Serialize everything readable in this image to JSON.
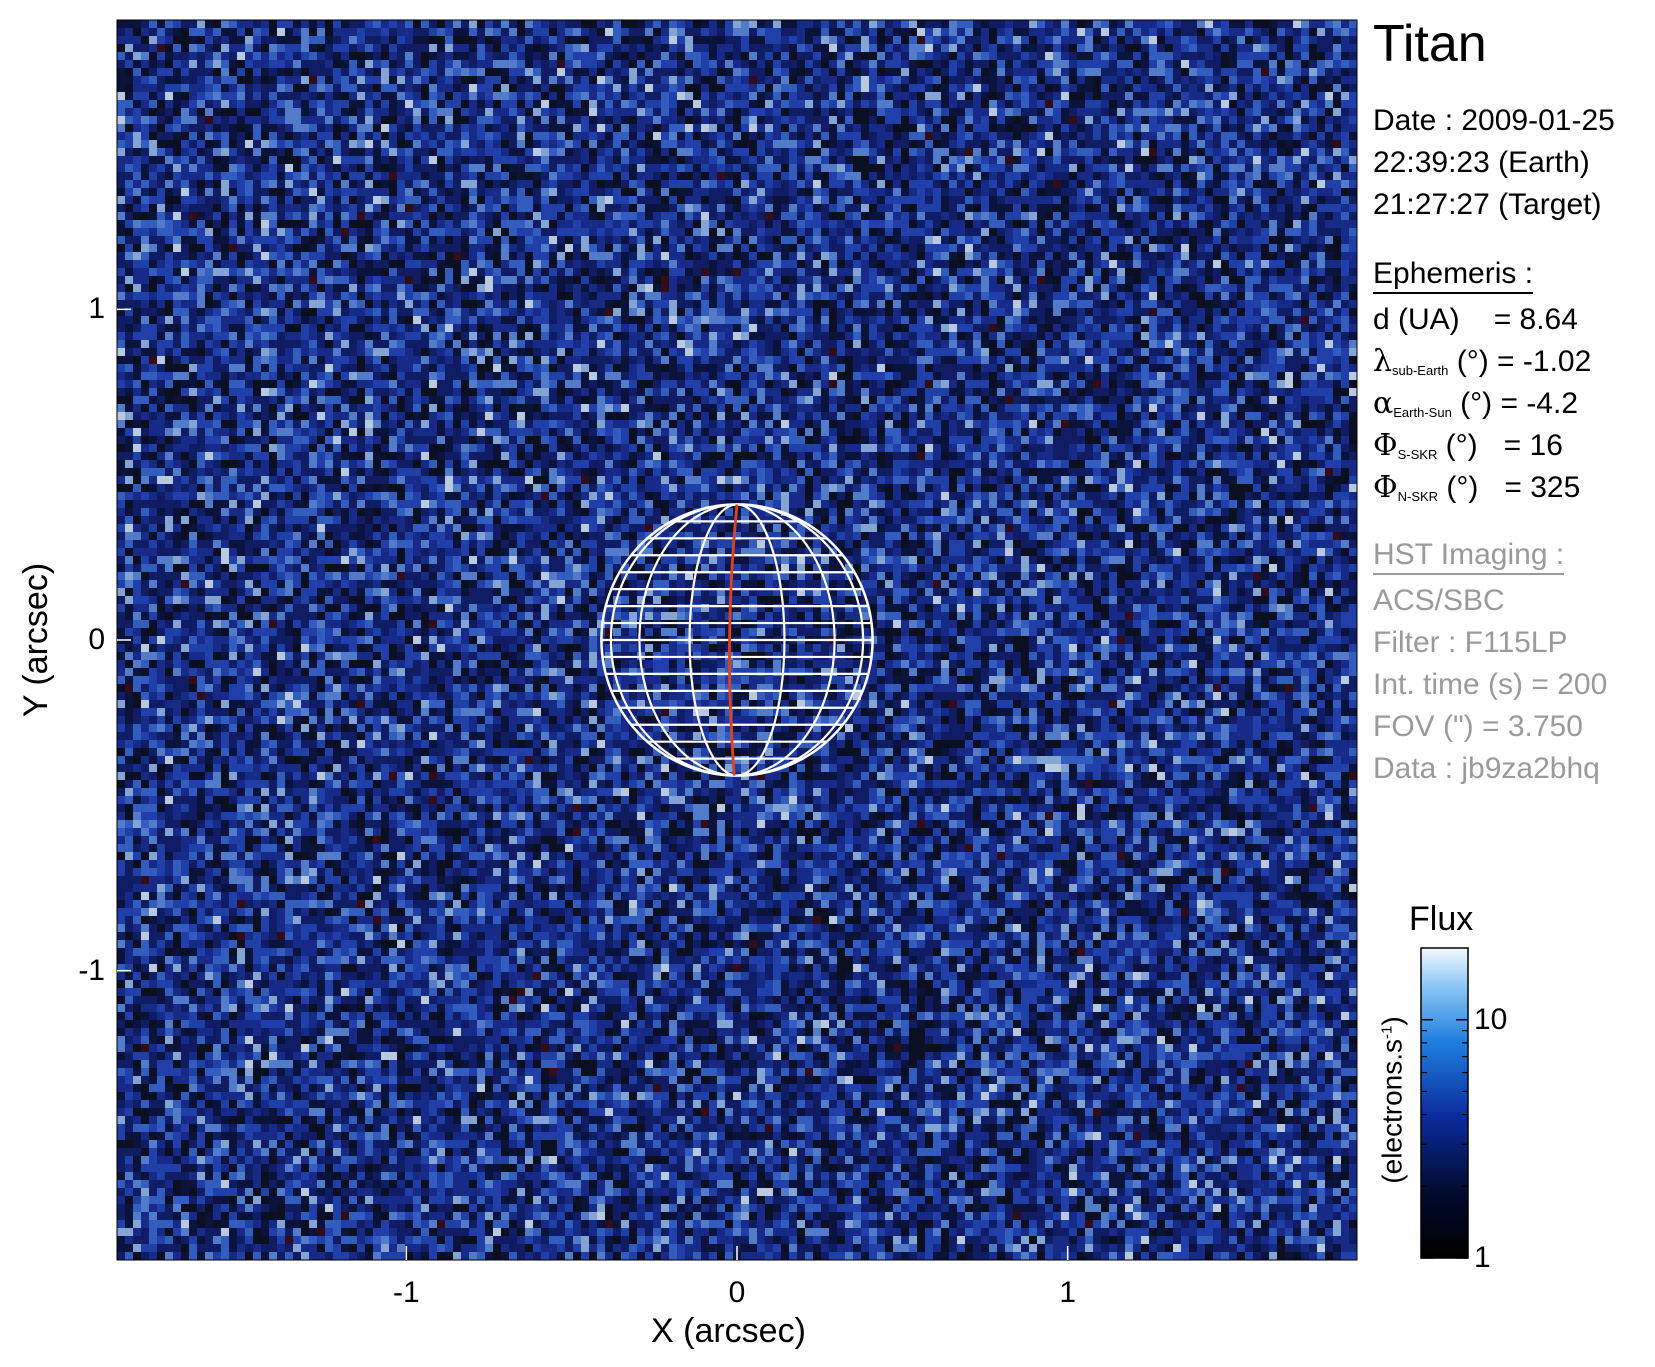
{
  "target": "Titan",
  "date": {
    "label": "Date : 2009-01-25",
    "earth_time": "22:39:23 (Earth)",
    "target_time": "21:27:27 (Target)"
  },
  "ephemeris": {
    "header": "Ephemeris :",
    "d": {
      "label": "d (UA)",
      "value": "= 8.64"
    },
    "lambda": {
      "symbol": "λ",
      "sub": "sub-Earth",
      "unit": " (°)",
      "value": " = -1.02"
    },
    "alpha": {
      "symbol": "α",
      "sub": "Earth-Sun",
      "unit": " (°)",
      "value": " = -4.2"
    },
    "phi_s": {
      "symbol": "Φ",
      "sub": "S-SKR",
      "unit": " (°)",
      "value": "= 16"
    },
    "phi_n": {
      "symbol": "Φ",
      "sub": "N-SKR",
      "unit": " (°)",
      "value": "= 325"
    }
  },
  "hst": {
    "header": "HST Imaging :",
    "instrument": "ACS/SBC",
    "filter": "Filter : F115LP",
    "int_time": "Int. time (s) = 200",
    "fov": "FOV (\") = 3.750",
    "data": "Data : jb9za2bhq"
  },
  "axes": {
    "x_label": "X (arcsec)",
    "y_label": "Y (arcsec)",
    "x_ticks": [
      {
        "value": -1,
        "label": "-1"
      },
      {
        "value": 0,
        "label": "0"
      },
      {
        "value": 1,
        "label": "1"
      }
    ],
    "y_ticks": [
      {
        "value": 1,
        "label": "1"
      },
      {
        "value": 0,
        "label": "0"
      },
      {
        "value": -1,
        "label": "-1"
      }
    ],
    "x_range": [
      -1.875,
      1.875
    ],
    "y_range": [
      -1.875,
      1.875
    ]
  },
  "colorbar": {
    "title": "Flux",
    "label": "(electrons.s",
    "label_sup": "-1",
    "label_end": ")",
    "scale": "log",
    "range": [
      1,
      20
    ],
    "ticks": [
      {
        "value": 10,
        "label": "10"
      },
      {
        "value": 1,
        "label": "1"
      }
    ]
  },
  "planet": {
    "center_arcsec": [
      0,
      0
    ],
    "radius_arcsec": 0.41,
    "grid_color": "#ffffff",
    "meridian_color": "#e2401a"
  },
  "colors": {
    "background": "#ffffff",
    "image_base": "#0a0f22",
    "noise_low": "#101a55",
    "noise_high": "#cfe4ff"
  }
}
